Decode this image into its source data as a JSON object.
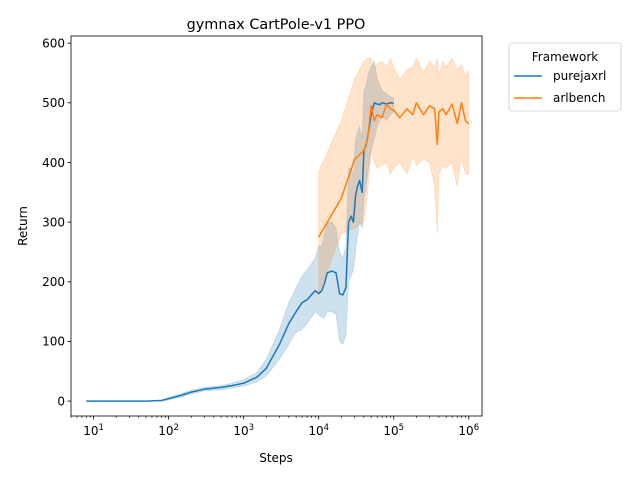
{
  "chart_data": {
    "type": "line",
    "title": "gymnax CartPole-v1 PPO",
    "xlabel": "Steps",
    "ylabel": "Return",
    "xscale": "log",
    "xlim": [
      5,
      1500000
    ],
    "ylim": [
      -25,
      612
    ],
    "yticks": [
      0,
      100,
      200,
      300,
      400,
      500,
      600
    ],
    "xticks": [
      {
        "value": 10,
        "base": "10",
        "exp": "1"
      },
      {
        "value": 100,
        "base": "10",
        "exp": "2"
      },
      {
        "value": 1000,
        "base": "10",
        "exp": "3"
      },
      {
        "value": 10000,
        "base": "10",
        "exp": "4"
      },
      {
        "value": 100000,
        "base": "10",
        "exp": "5"
      },
      {
        "value": 1000000,
        "base": "10",
        "exp": "6"
      }
    ],
    "grid": false,
    "legend": {
      "title": "Framework",
      "placement": "outside-top-right"
    },
    "series": [
      {
        "name": "purejaxrl",
        "color": "#1f77b4",
        "x": [
          8,
          20,
          50,
          80,
          100,
          150,
          200,
          300,
          500,
          700,
          1000,
          1500,
          2000,
          3000,
          4000,
          5000,
          6000,
          7000,
          8000,
          9000,
          10000,
          11000,
          12000,
          13000,
          15000,
          17000,
          19000,
          21000,
          23000,
          25000,
          27000,
          29000,
          31000,
          33000,
          35000,
          38000,
          40000,
          43000,
          46000,
          50000,
          55000,
          60000,
          65000,
          70000,
          80000,
          90000,
          100000
        ],
        "y": [
          0,
          0,
          0,
          1,
          4,
          10,
          15,
          20,
          23,
          26,
          30,
          40,
          55,
          95,
          130,
          150,
          165,
          170,
          178,
          185,
          180,
          185,
          198,
          215,
          218,
          215,
          180,
          178,
          190,
          300,
          310,
          300,
          345,
          360,
          370,
          350,
          420,
          430,
          450,
          480,
          500,
          498,
          497,
          500,
          498,
          500,
          499
        ],
        "band_lower": [
          0,
          0,
          0,
          0,
          2,
          7,
          12,
          17,
          19,
          22,
          25,
          32,
          42,
          70,
          95,
          115,
          120,
          130,
          140,
          150,
          145,
          140,
          140,
          150,
          150,
          145,
          100,
          95,
          110,
          200,
          210,
          220,
          250,
          280,
          300,
          290,
          340,
          360,
          390,
          420,
          440,
          460,
          470,
          480,
          470,
          480,
          485
        ],
        "band_upper": [
          0,
          0,
          0,
          2,
          6,
          13,
          18,
          23,
          26,
          30,
          36,
          48,
          70,
          120,
          165,
          190,
          210,
          220,
          230,
          240,
          260,
          260,
          280,
          300,
          300,
          290,
          250,
          240,
          260,
          390,
          390,
          380,
          440,
          450,
          460,
          440,
          520,
          530,
          550,
          560,
          570,
          540,
          530,
          520,
          515,
          510,
          508
        ]
      },
      {
        "name": "arlbench",
        "color": "#ff7f0e",
        "x": [
          10000,
          20000,
          30000,
          40000,
          45000,
          50000,
          55000,
          60000,
          70000,
          80000,
          90000,
          100000,
          120000,
          150000,
          180000,
          200000,
          250000,
          300000,
          350000,
          380000,
          400000,
          450000,
          500000,
          600000,
          700000,
          800000,
          900000,
          1000000
        ],
        "y": [
          275,
          340,
          405,
          420,
          440,
          495,
          470,
          480,
          475,
          498,
          490,
          488,
          475,
          490,
          480,
          500,
          480,
          495,
          490,
          430,
          485,
          490,
          480,
          498,
          465,
          500,
          470,
          465
        ],
        "band_lower": [
          180,
          280,
          290,
          300,
          350,
          420,
          400,
          390,
          395,
          400,
          380,
          390,
          400,
          380,
          410,
          395,
          405,
          400,
          360,
          280,
          380,
          395,
          390,
          400,
          360,
          410,
          380,
          380
        ],
        "band_upper": [
          385,
          470,
          540,
          570,
          575,
          575,
          560,
          565,
          570,
          560,
          575,
          560,
          540,
          555,
          560,
          575,
          550,
          570,
          560,
          575,
          545,
          570,
          560,
          575,
          555,
          565,
          545,
          555
        ]
      }
    ]
  }
}
